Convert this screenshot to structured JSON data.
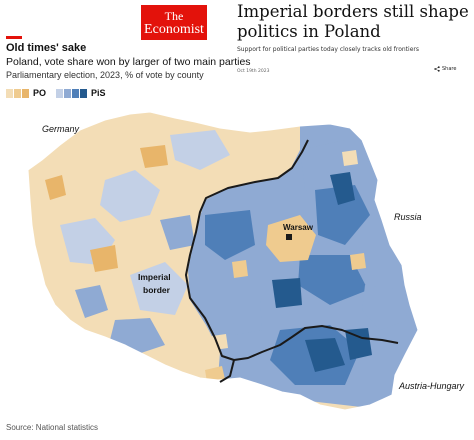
{
  "header": {
    "logo_line1": "The",
    "logo_line2": "Economist",
    "headline": "Imperial borders still shape politics in Poland",
    "standfirst": "Support for political parties today closely tracks old frontiers",
    "date": "Oct 19th 2023",
    "share_label": "Share",
    "share_icon": "share-icon"
  },
  "chart": {
    "title": "Old times' sake",
    "subtitle": "Poland, vote share won by larger of two main parties",
    "unit_note": "Parliamentary election, 2023, % of vote by county",
    "legend": {
      "po": {
        "label": "PO",
        "colors": [
          "#f3ddb6",
          "#efcb8f",
          "#e8b56a"
        ]
      },
      "pis": {
        "label": "PiS",
        "colors": [
          "#c3d0e6",
          "#8faad3",
          "#4f7fb8",
          "#245a8e"
        ]
      }
    },
    "labels": {
      "germany": "Germany",
      "russia": "Russia",
      "imperial_border_line1": "Imperial",
      "imperial_border_line2": "border",
      "warsaw": "Warsaw",
      "austria_hungary": "Austria-Hungary"
    },
    "colors": {
      "po_light": "#f3ddb6",
      "po_mid": "#efcb8f",
      "po_dark": "#e8b56a",
      "pis_light": "#c3d0e6",
      "pis_mid": "#8faad3",
      "pis_dark": "#4f7fb8",
      "pis_darkest": "#245a8e",
      "border": "#1a1a1a"
    }
  },
  "footer": {
    "source": "Source: National statistics"
  }
}
